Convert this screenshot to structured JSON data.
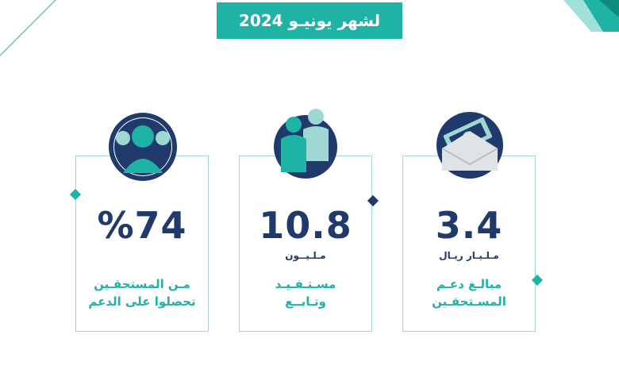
{
  "header": {
    "title": "لشهر يونيـو 2024"
  },
  "cards": [
    {
      "value": "%74",
      "unit": "",
      "line1": "مـن المستحقـين",
      "line2": "تحصلوا على الدعم",
      "icon": "person-icon"
    },
    {
      "value": "10.8",
      "unit": "مـلـيــون",
      "line1": "مسـتـفـيـد",
      "line2": "وتـابــع",
      "icon": "people-icon"
    },
    {
      "value": "3.4",
      "unit": "مـلـيـار ريـال",
      "line1": "مبالـغ دعـم",
      "line2": "المسـتحقـين",
      "icon": "money-envelope-icon"
    }
  ],
  "colors": {
    "teal": "#1fb3a6",
    "navy": "#1f3a6b",
    "border": "#9fd7d3"
  }
}
